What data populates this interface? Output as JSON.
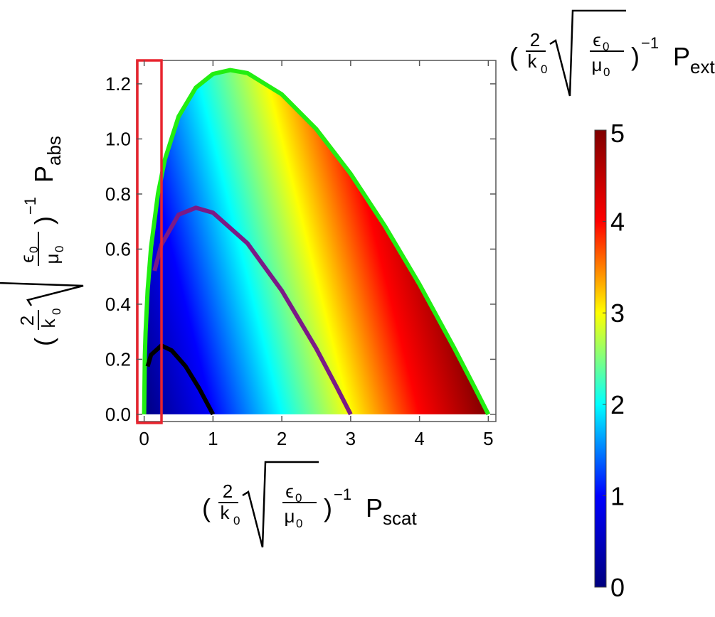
{
  "chart_data": {
    "type": "line",
    "x_label": {
      "open": "(",
      "coef_num": "2",
      "coef_den": "k",
      "coef_den_sub": "0",
      "root_num": "ϵ",
      "root_num_sub": "0",
      "root_den": "μ",
      "root_den_sub": "0",
      "close": ")",
      "power": "−1",
      "symbol": "P",
      "symbol_sub": "scat"
    },
    "y_label": {
      "open": "(",
      "coef_num": "2",
      "coef_den": "k",
      "coef_den_sub": "0",
      "root_num": "ϵ",
      "root_num_sub": "0",
      "root_den": "μ",
      "root_den_sub": "0",
      "close": ")",
      "power": "−1",
      "symbol": "P",
      "symbol_sub": "abs"
    },
    "xlim": [
      -0.11,
      5.11
    ],
    "ylim": [
      -0.026,
      1.285
    ],
    "xticks": [
      0,
      1,
      2,
      3,
      4,
      5
    ],
    "yticks": [
      {
        "value": 0,
        "label": "0.0"
      },
      {
        "value": 0.2,
        "label": "0.2"
      },
      {
        "value": 0.4,
        "label": "0.4"
      },
      {
        "value": 0.6,
        "label": "0.6"
      },
      {
        "value": 0.8,
        "label": "0.8"
      },
      {
        "value": 1.0,
        "label": "1.0"
      },
      {
        "value": 1.2,
        "label": "1.2"
      }
    ],
    "series": [
      {
        "color": "#22ee11",
        "fill": "colorbar",
        "x": [
          0,
          0.01,
          0.02,
          0.05,
          0.1,
          0.2,
          0.3,
          0.5,
          0.75,
          1,
          1.25,
          1.5,
          2,
          2.5,
          3,
          3.5,
          4,
          4.5,
          4.8,
          5
        ],
        "values": [
          0,
          0.214,
          0.296,
          0.45,
          0.607,
          0.8,
          0.925,
          1.081,
          1.186,
          1.236,
          1.25,
          1.239,
          1.162,
          1.036,
          0.873,
          0.683,
          0.472,
          0.243,
          0.099,
          0
        ]
      },
      {
        "color": "#7b1a86",
        "x": [
          0.15,
          0.25,
          0.5,
          0.75,
          1,
          1.5,
          2,
          2.5,
          2.8,
          3
        ],
        "values": [
          0.521,
          0.616,
          0.725,
          0.75,
          0.732,
          0.621,
          0.449,
          0.239,
          0.098,
          0
        ]
      },
      {
        "color": "#000000",
        "x": [
          0.05,
          0.1,
          0.25,
          0.4,
          0.6,
          0.8,
          1
        ],
        "values": [
          0.174,
          0.216,
          0.25,
          0.232,
          0.175,
          0.094,
          0
        ]
      }
    ],
    "colorbar": {
      "label": {
        "open": "(",
        "coef_num": "2",
        "coef_den": "k",
        "coef_den_sub": "0",
        "root_num": "ϵ",
        "root_num_sub": "0",
        "root_den": "μ",
        "root_den_sub": "0",
        "close": ")",
        "power": "−1",
        "symbol": "P",
        "symbol_sub": "ext"
      },
      "lim": [
        0,
        5
      ],
      "ticks": [
        0,
        1,
        2,
        3,
        4,
        5
      ],
      "colors": [
        "#00007f",
        "#0000ff",
        "#00ffff",
        "#ffff00",
        "#ff0000",
        "#7f0000"
      ]
    }
  }
}
